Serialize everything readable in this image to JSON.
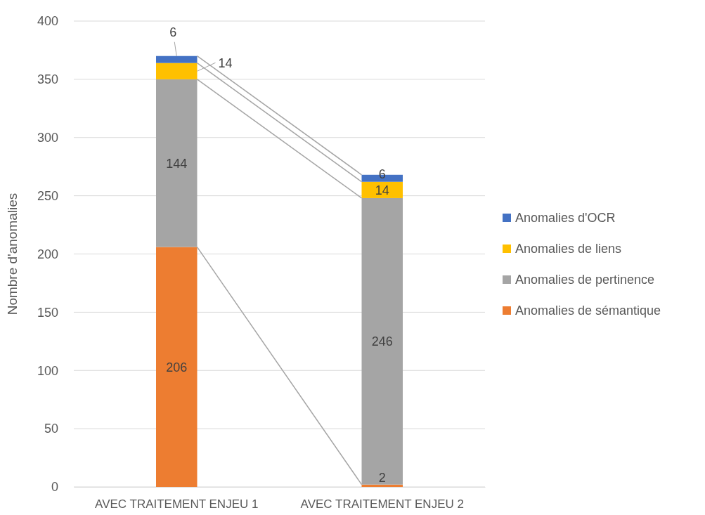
{
  "chart_data": {
    "type": "bar",
    "stacked": true,
    "ylabel": "Nombre d'anomalies",
    "categories": [
      "AVEC TRAITEMENT ENJEU 1",
      "AVEC TRAITEMENT ENJEU 2"
    ],
    "series": [
      {
        "name": "Anomalies de sémantique",
        "color": "#ed7d31",
        "values": [
          206,
          2
        ]
      },
      {
        "name": "Anomalies de pertinence",
        "color": "#a5a5a5",
        "values": [
          144,
          246
        ]
      },
      {
        "name": "Anomalies de liens",
        "color": "#ffc000",
        "values": [
          14,
          14
        ]
      },
      {
        "name": "Anomalies d'OCR",
        "color": "#4472c4",
        "values": [
          6,
          6
        ]
      }
    ],
    "ylim": [
      0,
      400
    ],
    "yticks": [
      0,
      50,
      100,
      150,
      200,
      250,
      300,
      350,
      400
    ],
    "grid": "y",
    "legend": "right",
    "data_labels": true
  }
}
